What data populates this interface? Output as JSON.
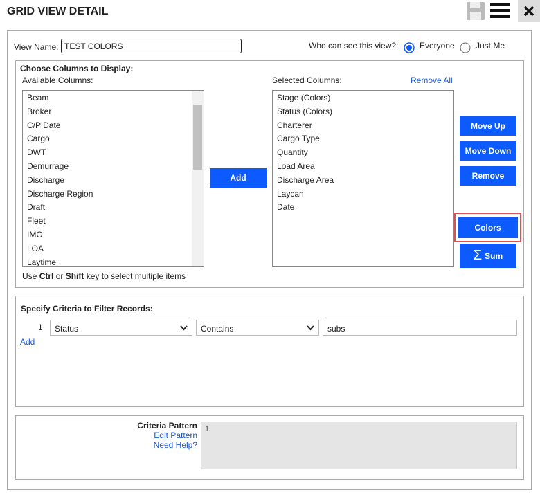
{
  "header": {
    "title": "GRID VIEW DETAIL"
  },
  "view": {
    "name_label": "View Name:",
    "name_value": "TEST COLORS",
    "visibility_label": "Who can see this view?:",
    "options": [
      "Everyone",
      "Just Me"
    ]
  },
  "columns": {
    "title": "Choose Columns to Display:",
    "available_label": "Available Columns:",
    "available": [
      "Beam",
      "Broker",
      "C/P Date",
      "Cargo",
      "DWT",
      "Demurrage",
      "Discharge",
      "Discharge Region",
      "Draft",
      "Fleet",
      "IMO",
      "LOA",
      "Laytime"
    ],
    "selected_label": "Selected Columns:",
    "remove_all": "Remove All",
    "selected": [
      "Stage (Colors)",
      "Status (Colors)",
      "Charterer",
      "Cargo Type",
      "Quantity",
      "Load Area",
      "Discharge Area",
      "Laycan",
      "Date"
    ],
    "buttons": {
      "add": "Add",
      "move_up": "Move Up",
      "move_down": "Move Down",
      "remove": "Remove",
      "colors": "Colors",
      "sum_icon": "Σ",
      "sum": "Sum"
    },
    "hint": {
      "prefix": "Use",
      "key1": "Ctrl",
      "mid": "or",
      "key2": "Shift",
      "suffix": "key to select multiple items"
    }
  },
  "criteria": {
    "title": "Specify Criteria to Filter Records:",
    "rows": [
      {
        "index": "1",
        "field": "Status",
        "operator": "Contains",
        "value": "subs"
      }
    ],
    "add": "Add"
  },
  "pattern": {
    "label": "Criteria Pattern",
    "edit": "Edit Pattern",
    "help": "Need Help?",
    "value": "1"
  }
}
